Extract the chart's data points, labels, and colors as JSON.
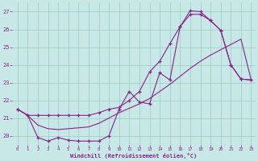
{
  "bg_color": "#c8e8e8",
  "grid_color": "#99ccbb",
  "line_color": "#882288",
  "xlabel": "Windchill (Refroidissement éolien,°C)",
  "xlim_min": -0.5,
  "xlim_max": 23.4,
  "ylim_min": 19.5,
  "ylim_max": 27.5,
  "yticks": [
    20,
    21,
    22,
    23,
    24,
    25,
    26,
    27
  ],
  "xticks": [
    0,
    1,
    2,
    3,
    4,
    5,
    6,
    7,
    8,
    9,
    10,
    11,
    12,
    13,
    14,
    15,
    16,
    17,
    18,
    19,
    20,
    21,
    22,
    23
  ],
  "line1_x": [
    0,
    1,
    2,
    3,
    4,
    5,
    6,
    7,
    8,
    9,
    10,
    11,
    12,
    13,
    14,
    15,
    16,
    17,
    18,
    19,
    20,
    21,
    22,
    23
  ],
  "line1_y": [
    21.5,
    21.15,
    21.15,
    21.15,
    21.15,
    21.15,
    21.15,
    21.15,
    21.3,
    21.5,
    21.6,
    22.0,
    22.5,
    23.6,
    24.2,
    25.2,
    26.15,
    26.85,
    26.85,
    26.5,
    25.95,
    24.0,
    23.2,
    23.15
  ],
  "line2_x": [
    0,
    1,
    2,
    3,
    4,
    5,
    6,
    7,
    8,
    9,
    10,
    11,
    12,
    13,
    14,
    15,
    16,
    17,
    18,
    19,
    20,
    21,
    22,
    23
  ],
  "line2_y": [
    21.5,
    21.15,
    19.9,
    19.7,
    19.9,
    19.75,
    19.7,
    19.7,
    19.7,
    20.0,
    21.5,
    22.5,
    21.9,
    21.8,
    23.55,
    23.15,
    26.15,
    27.05,
    27.0,
    26.5,
    25.95,
    24.0,
    23.2,
    23.15
  ],
  "line3_x": [
    0,
    1,
    2,
    3,
    4,
    5,
    6,
    7,
    8,
    9,
    10,
    11,
    12,
    13,
    14,
    15,
    16,
    17,
    18,
    19,
    20,
    21,
    22,
    23
  ],
  "line3_y": [
    21.5,
    21.15,
    20.6,
    20.4,
    20.35,
    20.4,
    20.45,
    20.5,
    20.7,
    21.0,
    21.3,
    21.55,
    21.8,
    22.1,
    22.5,
    22.9,
    23.35,
    23.8,
    24.2,
    24.55,
    24.85,
    25.15,
    25.45,
    23.15
  ]
}
